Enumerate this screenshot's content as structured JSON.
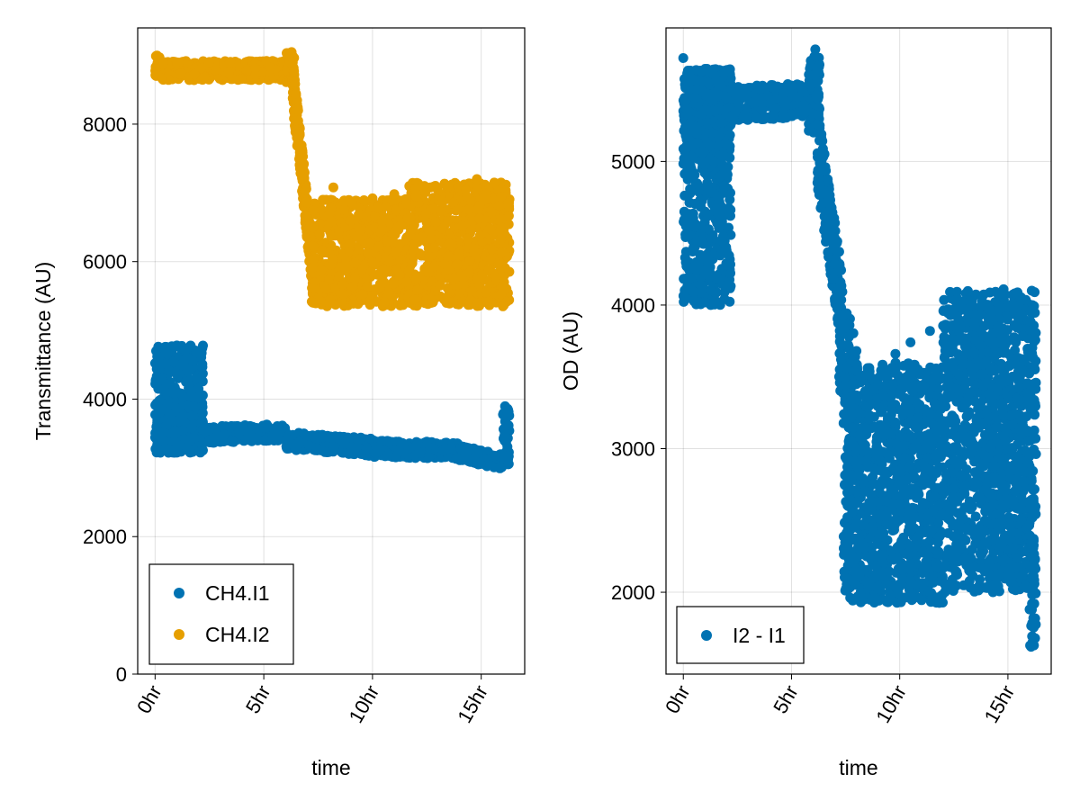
{
  "chart_data": [
    {
      "type": "scatter",
      "xlabel": "time",
      "ylabel": "Transmittance (AU)",
      "xlim": [
        -0.8,
        17.0
      ],
      "ylim": [
        0,
        9400
      ],
      "x_ticks": [
        0,
        5,
        10,
        15
      ],
      "x_tick_labels": [
        "0hr",
        "5hr",
        "10hr",
        "15hr"
      ],
      "y_ticks": [
        0,
        2000,
        4000,
        6000,
        8000
      ],
      "y_tick_labels": [
        "0",
        "2000",
        "4000",
        "6000",
        "8000"
      ],
      "grid": true,
      "legend_position": "bottom-left",
      "series": [
        {
          "name": "CH4.I1",
          "color": "#0072b2",
          "segments": [
            {
              "x": [
                0.0,
                2.2
              ],
              "y": [
                3220,
                3700
              ],
              "spread": 0
            },
            {
              "x": [
                0.0,
                2.2
              ],
              "y": [
                3220,
                4780
              ],
              "spread": 0
            },
            {
              "x": [
                2.2,
                6.0
              ],
              "y": [
                3480,
                3520
              ],
              "spread": 120
            },
            {
              "x": [
                6.0,
                10.0
              ],
              "y": [
                3400,
                3300
              ],
              "spread": 130
            },
            {
              "x": [
                10.0,
                14.0
              ],
              "y": [
                3280,
                3250
              ],
              "spread": 120
            },
            {
              "x": [
                14.0,
                16.0
              ],
              "y": [
                3220,
                3080
              ],
              "spread": 110
            },
            {
              "x": [
                16.0,
                16.3
              ],
              "y": [
                3050,
                3900
              ],
              "spread": 0
            }
          ],
          "outliers": [
            {
              "x": 0.05,
              "y": 4700
            },
            {
              "x": 0.1,
              "y": 4620
            },
            {
              "x": 0.3,
              "y": 4300
            },
            {
              "x": 0.15,
              "y": 4150
            },
            {
              "x": 0.2,
              "y": 3980
            },
            {
              "x": 1.0,
              "y": 4780
            },
            {
              "x": 1.2,
              "y": 4500
            },
            {
              "x": 1.4,
              "y": 4720
            },
            {
              "x": 1.6,
              "y": 4420
            },
            {
              "x": 1.9,
              "y": 4680
            },
            {
              "x": 1.9,
              "y": 4300
            },
            {
              "x": 1.5,
              "y": 4600
            },
            {
              "x": 0.8,
              "y": 4100
            },
            {
              "x": 2.0,
              "y": 4150
            }
          ]
        },
        {
          "name": "CH4.I2",
          "color": "#e69f00",
          "segments": [
            {
              "x": [
                0.0,
                0.3
              ],
              "y": [
                8700,
                9000
              ],
              "spread": 0
            },
            {
              "x": [
                0.3,
                6.0
              ],
              "y": [
                8780,
                8780
              ],
              "spread": 140
            },
            {
              "x": [
                6.0,
                6.4
              ],
              "y": [
                8600,
                9050
              ],
              "spread": 0
            },
            {
              "x": [
                6.3,
                7.3
              ],
              "y": [
                8700,
                5700
              ],
              "spread": 350
            },
            {
              "x": [
                7.2,
                11.5
              ],
              "y": [
                5350,
                6900
              ],
              "spread": 0
            },
            {
              "x": [
                11.5,
                16.3
              ],
              "y": [
                5350,
                7150
              ],
              "spread": 0
            }
          ],
          "outliers": [
            {
              "x": 10.0,
              "y": 6920
            },
            {
              "x": 11.0,
              "y": 6980
            },
            {
              "x": 12.0,
              "y": 6950
            },
            {
              "x": 13.5,
              "y": 7100
            },
            {
              "x": 14.8,
              "y": 7200
            },
            {
              "x": 15.6,
              "y": 7150
            },
            {
              "x": 8.2,
              "y": 7080
            },
            {
              "x": 9.0,
              "y": 6600
            }
          ]
        }
      ]
    },
    {
      "type": "scatter",
      "xlabel": "time",
      "ylabel": "OD (AU)",
      "xlim": [
        -0.8,
        17.0
      ],
      "ylim": [
        1430,
        5930
      ],
      "x_ticks": [
        0,
        5,
        10,
        15
      ],
      "x_tick_labels": [
        "0hr",
        "5hr",
        "10hr",
        "15hr"
      ],
      "y_ticks": [
        2000,
        3000,
        4000,
        5000
      ],
      "y_tick_labels": [
        "2000",
        "3000",
        "4000",
        "5000"
      ],
      "grid": true,
      "legend_position": "bottom-left",
      "series": [
        {
          "name": "I2 - I1",
          "color": "#0072b2",
          "segments": [
            {
              "x": [
                0.0,
                2.2
              ],
              "y": [
                5050,
                5650
              ],
              "spread": 0
            },
            {
              "x": [
                0.0,
                2.2
              ],
              "y": [
                4000,
                5650
              ],
              "spread": 0
            },
            {
              "x": [
                2.2,
                6.0
              ],
              "y": [
                5400,
                5430
              ],
              "spread": 120
            },
            {
              "x": [
                5.8,
                6.3
              ],
              "y": [
                5200,
                5780
              ],
              "spread": 0
            },
            {
              "x": [
                6.2,
                7.3
              ],
              "y": [
                5100,
                4000
              ],
              "spread": 280
            },
            {
              "x": [
                7.2,
                8.0
              ],
              "y": [
                3800,
                3400
              ],
              "spread": 400
            },
            {
              "x": [
                7.4,
                12.0
              ],
              "y": [
                1920,
                3600
              ],
              "spread": 0
            },
            {
              "x": [
                12.0,
                16.3
              ],
              "y": [
                2000,
                4100
              ],
              "spread": 0
            },
            {
              "x": [
                16.0,
                16.3
              ],
              "y": [
                1620,
                2400
              ],
              "spread": 0
            }
          ],
          "outliers": [
            {
              "x": 0.0,
              "y": 5720
            },
            {
              "x": 0.05,
              "y": 4650
            },
            {
              "x": 0.1,
              "y": 4100
            },
            {
              "x": 0.15,
              "y": 4270
            },
            {
              "x": 0.2,
              "y": 4480
            },
            {
              "x": 1.0,
              "y": 4020
            },
            {
              "x": 1.3,
              "y": 4100
            },
            {
              "x": 1.8,
              "y": 4560
            },
            {
              "x": 2.0,
              "y": 4380
            },
            {
              "x": 2.0,
              "y": 4130
            },
            {
              "x": 6.1,
              "y": 5780
            },
            {
              "x": 9.8,
              "y": 3660
            },
            {
              "x": 10.5,
              "y": 3740
            },
            {
              "x": 11.4,
              "y": 3820
            },
            {
              "x": 13.2,
              "y": 3940
            },
            {
              "x": 14.0,
              "y": 3990
            },
            {
              "x": 14.8,
              "y": 4110
            },
            {
              "x": 16.1,
              "y": 4100
            },
            {
              "x": 16.2,
              "y": 1810
            },
            {
              "x": 16.2,
              "y": 1630
            },
            {
              "x": 8.0,
              "y": 3680
            }
          ]
        }
      ]
    }
  ]
}
